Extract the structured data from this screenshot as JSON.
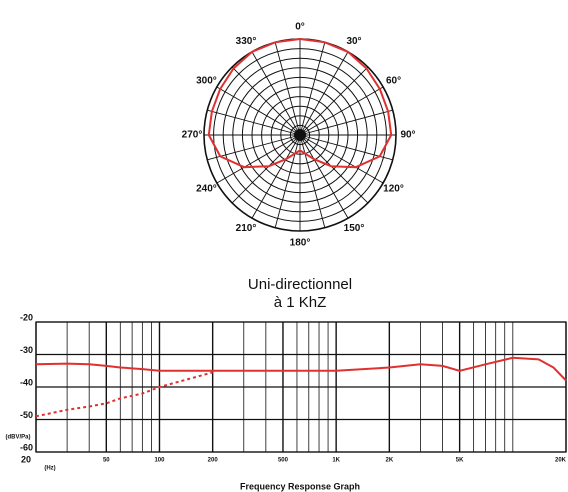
{
  "chart_data": [
    {
      "type": "polar",
      "theta": [
        0,
        15,
        30,
        45,
        60,
        75,
        90,
        105,
        120,
        135,
        150,
        165,
        180,
        195,
        210,
        225,
        240,
        255,
        270,
        285,
        300,
        315,
        330,
        345
      ],
      "values": [
        10,
        10,
        10,
        9.8,
        9.6,
        9.5,
        9.5,
        8.6,
        6.7,
        4.6,
        2.9,
        2,
        1.6,
        2,
        2.9,
        4.6,
        6.7,
        8.6,
        9.5,
        9.5,
        9.6,
        9.8,
        10,
        10
      ],
      "color": "#e03030",
      "rlim": [
        0,
        10
      ],
      "rticks": [
        1,
        2,
        3,
        4,
        5,
        6,
        7,
        8,
        9,
        10
      ],
      "thetaticks": [
        {
          "value": 0,
          "label": "0°"
        },
        {
          "value": 30,
          "label": "30°"
        },
        {
          "value": 60,
          "label": "60°"
        },
        {
          "value": 90,
          "label": "90°"
        },
        {
          "value": 120,
          "label": "120°"
        },
        {
          "value": 150,
          "label": "150°"
        },
        {
          "value": 180,
          "label": "180°"
        },
        {
          "value": 210,
          "label": "210°"
        },
        {
          "value": 240,
          "label": "240°"
        },
        {
          "value": 270,
          "label": "270°"
        },
        {
          "value": 300,
          "label": "300°"
        },
        {
          "value": 330,
          "label": "330°"
        }
      ],
      "spokes": [
        0,
        15,
        30,
        45,
        60,
        75,
        90,
        105,
        120,
        135,
        150,
        165,
        180,
        195,
        210,
        225,
        240,
        255,
        270,
        285,
        300,
        315,
        330,
        345
      ],
      "title": "Uni-directionnel",
      "subtitle": "à 1 KhZ"
    },
    {
      "type": "line",
      "title": "Frequency Response Graph",
      "x_label": "(Hz)",
      "y_label": "(dBV/Pa)",
      "log_x": true,
      "x": [
        20,
        30,
        40,
        50,
        60,
        80,
        100,
        200,
        500,
        1000,
        2000,
        3000,
        4000,
        5000,
        7000,
        10000,
        14000,
        17000,
        20000
      ],
      "series": [
        {
          "color": "#e03030",
          "dashed": false,
          "values": [
            -33,
            -32.8,
            -33,
            -33.5,
            -34,
            -34.5,
            -35,
            -35,
            -35,
            -35,
            -34,
            -33,
            -33.5,
            -35,
            -33,
            -31,
            -31.5,
            -34,
            -38
          ]
        },
        {
          "color": "#e03030",
          "dashed": true,
          "values": [
            -49,
            -47,
            -46,
            -45,
            -43.5,
            -42,
            -40,
            -35.5,
            null,
            null,
            null,
            null,
            null,
            null,
            null,
            null,
            null,
            null,
            null
          ]
        }
      ],
      "xlim": [
        20,
        20000
      ],
      "ylim": [
        -60,
        -20
      ],
      "xticks": [
        20,
        50,
        100,
        200,
        500,
        {
          "value": 1000,
          "label": "1K"
        },
        {
          "value": 2000,
          "label": "2K"
        },
        {
          "value": 5000,
          "label": "5K"
        },
        {
          "value": 20000,
          "label": "20K"
        }
      ],
      "xminorticks": [
        30,
        40,
        60,
        70,
        80,
        90,
        300,
        400,
        600,
        700,
        800,
        900,
        3000,
        4000,
        6000,
        7000,
        8000,
        9000,
        10000
      ],
      "yticks": [
        -20,
        -30,
        -40,
        -50,
        -60
      ],
      "grid": true
    }
  ]
}
